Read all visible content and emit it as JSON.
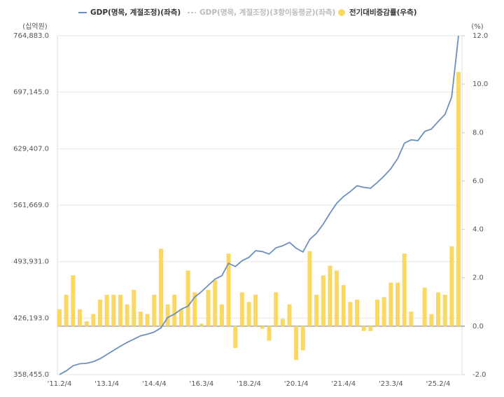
{
  "chart_data": {
    "type": "bar-line",
    "y_axis_label": "(십억원)",
    "y2_axis_label": "(%)",
    "categories": [
      "'11.2/4",
      null,
      null,
      null,
      null,
      null,
      null,
      "'13.1/4",
      null,
      null,
      null,
      null,
      null,
      null,
      "'14.4/4",
      null,
      null,
      null,
      null,
      null,
      null,
      "'16.3/4",
      null,
      null,
      null,
      null,
      null,
      null,
      "'18.2/4",
      null,
      null,
      null,
      null,
      null,
      null,
      "'20.1/4",
      null,
      null,
      null,
      null,
      null,
      null,
      "'21.4/4",
      null,
      null,
      null,
      null,
      null,
      null,
      "'23.3/4",
      null,
      null,
      null,
      null,
      null,
      null,
      "'25.2/4",
      null,
      null,
      null
    ],
    "series": [
      {
        "name": "GDP(명목, 계절조정)(좌측)",
        "type": "line",
        "color": "#6b8fc0",
        "axis": "y",
        "values": [
          358500,
          363000,
          369000,
          371500,
          372000,
          374000,
          377500,
          382500,
          387500,
          392500,
          397000,
          401000,
          405000,
          407000,
          409500,
          414500,
          427000,
          431000,
          437000,
          440500,
          451500,
          458000,
          465500,
          473000,
          477000,
          492000,
          488000,
          495000,
          499000,
          507000,
          506000,
          503000,
          510500,
          513000,
          517000,
          510000,
          505500,
          520500,
          528000,
          539000,
          552000,
          564000,
          572000,
          578000,
          585000,
          583000,
          582000,
          589000,
          596500,
          605500,
          617500,
          636000,
          640000,
          639000,
          650000,
          653000,
          662000,
          670500,
          691500,
          764883
        ]
      },
      {
        "name": "GDP(명목, 계절조정)(3항이동평균)(좌측)",
        "type": "line",
        "color": "#c8c8c8",
        "dashed": true,
        "hidden": true
      },
      {
        "name": "전기대비증감률(우측)",
        "type": "bar",
        "color": "#fbd864",
        "axis": "y2",
        "values": [
          0.7,
          1.3,
          2.1,
          0.7,
          0.2,
          0.5,
          1.1,
          1.3,
          1.3,
          1.3,
          0.9,
          1.5,
          0.6,
          0.5,
          1.3,
          3.2,
          0.9,
          1.3,
          0.7,
          2.3,
          1.4,
          0.1,
          1.5,
          1.9,
          0.9,
          3.0,
          -0.9,
          1.4,
          1.0,
          1.3,
          -0.1,
          -0.6,
          1.4,
          0.3,
          0.9,
          -1.4,
          -1.0,
          3.1,
          1.3,
          2.1,
          2.5,
          2.3,
          1.7,
          1.0,
          1.1,
          -0.2,
          -0.2,
          1.1,
          1.2,
          1.8,
          1.8,
          3.0,
          0.6,
          0.0,
          1.6,
          0.5,
          1.4,
          1.3,
          3.3,
          10.5
        ]
      }
    ],
    "ylim": [
      358455,
      764883
    ],
    "yticks": [
      {
        "value": 358455,
        "label": "358,455.0"
      },
      {
        "value": 426193,
        "label": "426,193.0"
      },
      {
        "value": 493931,
        "label": "493,931.0"
      },
      {
        "value": 561669,
        "label": "561,669.0"
      },
      {
        "value": 629407,
        "label": "629,407.0"
      },
      {
        "value": 697145,
        "label": "697,145.0"
      },
      {
        "value": 764883,
        "label": "764,883.0"
      }
    ],
    "y2lim": [
      -2,
      12
    ],
    "y2ticks": [
      {
        "value": -2,
        "label": "-2.0"
      },
      {
        "value": 0,
        "label": "0.0"
      },
      {
        "value": 2,
        "label": "2.0"
      },
      {
        "value": 4,
        "label": "4.0"
      },
      {
        "value": 6,
        "label": "6.0"
      },
      {
        "value": 8,
        "label": "8.0"
      },
      {
        "value": 10,
        "label": "10.0"
      },
      {
        "value": 12,
        "label": "12.0"
      }
    ],
    "grid": true
  }
}
